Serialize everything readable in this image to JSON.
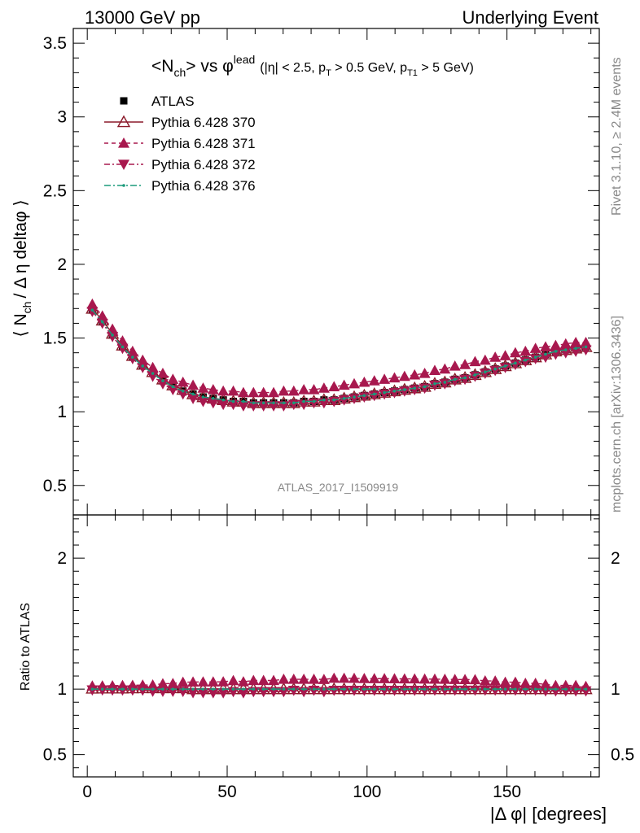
{
  "header": {
    "left": "13000 GeV pp",
    "right": "Underlying Event"
  },
  "side_labels": {
    "rivet": "Rivet 3.1.10, ≥ 2.4M events",
    "mcplots": "mcplots.cern.ch [arXiv:1306.3436]"
  },
  "analysis_id": "ATLAS_2017_I1509919",
  "colors": {
    "atlas": "#000000",
    "p370": "#8b1a2a",
    "p371": "#a8184e",
    "p372": "#a8184e",
    "p376": "#1a9a7a"
  },
  "chart_data": [
    {
      "type": "scatter",
      "title": {
        "main": "<N",
        "sub1": "ch",
        "mid": "> vs φ",
        "sup": "lead",
        "cuts_a": "(|η| < 2.5, p",
        "cuts_sub_a": "T",
        "cuts_b": " > 0.5 GeV, p",
        "cuts_sub_b": "T1",
        "cuts_c": " > 5 GeV)"
      },
      "ylabel": {
        "a": "⟨ N",
        "sub": "ch",
        "b": "/ Δ η deltaφ ⟩"
      },
      "xlabel": "",
      "xlim": [
        -5,
        183
      ],
      "ylim": [
        0.3,
        3.6
      ],
      "yticks": [
        0.5,
        1,
        1.5,
        2,
        2.5,
        3,
        3.5
      ],
      "ytick_labels": [
        "0.5",
        "1",
        "1.5",
        "2",
        "2.5",
        "3",
        "3.5"
      ],
      "legend": {
        "placement": "top-left",
        "entries": [
          "ATLAS",
          "Pythia 6.428 370",
          "Pythia 6.428 371",
          "Pythia 6.428 372",
          "Pythia 6.428 376"
        ]
      },
      "x": [
        1.8,
        5.4,
        9.0,
        12.6,
        16.2,
        19.8,
        23.4,
        27.0,
        30.6,
        34.2,
        37.8,
        41.4,
        45.0,
        48.6,
        52.2,
        55.8,
        59.4,
        63.0,
        66.6,
        70.2,
        73.8,
        77.4,
        81.0,
        84.6,
        88.2,
        91.8,
        95.4,
        99.0,
        102.6,
        106.2,
        109.8,
        113.4,
        117.0,
        120.6,
        124.2,
        127.8,
        131.4,
        135.0,
        138.6,
        142.2,
        145.8,
        149.4,
        153.0,
        156.6,
        160.2,
        163.8,
        167.4,
        171.0,
        174.6,
        178.2
      ],
      "series": [
        {
          "name": "ATLAS",
          "marker": "square",
          "values": [
            1.69,
            1.61,
            1.52,
            1.44,
            1.37,
            1.31,
            1.26,
            1.21,
            1.17,
            1.14,
            1.12,
            1.1,
            1.09,
            1.08,
            1.07,
            1.07,
            1.06,
            1.06,
            1.06,
            1.06,
            1.06,
            1.07,
            1.07,
            1.08,
            1.08,
            1.09,
            1.1,
            1.11,
            1.12,
            1.13,
            1.14,
            1.15,
            1.16,
            1.17,
            1.19,
            1.2,
            1.22,
            1.23,
            1.25,
            1.27,
            1.29,
            1.31,
            1.33,
            1.35,
            1.37,
            1.39,
            1.41,
            1.42,
            1.43,
            1.44
          ]
        },
        {
          "name": "Pythia 6.428 370",
          "marker": "triangle-open",
          "values": [
            1.7,
            1.62,
            1.53,
            1.45,
            1.38,
            1.32,
            1.27,
            1.22,
            1.18,
            1.15,
            1.12,
            1.1,
            1.09,
            1.08,
            1.07,
            1.07,
            1.06,
            1.06,
            1.06,
            1.06,
            1.06,
            1.07,
            1.07,
            1.08,
            1.08,
            1.09,
            1.1,
            1.11,
            1.12,
            1.13,
            1.14,
            1.15,
            1.16,
            1.17,
            1.19,
            1.2,
            1.22,
            1.23,
            1.25,
            1.27,
            1.29,
            1.31,
            1.33,
            1.35,
            1.37,
            1.39,
            1.41,
            1.42,
            1.43,
            1.44
          ]
        },
        {
          "name": "Pythia 6.428 371",
          "marker": "triangle-up",
          "values": [
            1.73,
            1.65,
            1.56,
            1.48,
            1.41,
            1.35,
            1.3,
            1.26,
            1.22,
            1.2,
            1.18,
            1.16,
            1.15,
            1.14,
            1.14,
            1.13,
            1.13,
            1.13,
            1.13,
            1.14,
            1.14,
            1.15,
            1.15,
            1.16,
            1.17,
            1.18,
            1.19,
            1.2,
            1.21,
            1.22,
            1.23,
            1.24,
            1.25,
            1.26,
            1.28,
            1.29,
            1.31,
            1.32,
            1.34,
            1.35,
            1.37,
            1.38,
            1.4,
            1.41,
            1.43,
            1.44,
            1.45,
            1.46,
            1.47,
            1.47
          ]
        },
        {
          "name": "Pythia 6.428 372",
          "marker": "triangle-down",
          "values": [
            1.68,
            1.6,
            1.51,
            1.43,
            1.36,
            1.3,
            1.24,
            1.19,
            1.15,
            1.12,
            1.09,
            1.07,
            1.06,
            1.05,
            1.05,
            1.04,
            1.04,
            1.04,
            1.04,
            1.04,
            1.05,
            1.05,
            1.06,
            1.06,
            1.07,
            1.08,
            1.09,
            1.1,
            1.11,
            1.12,
            1.13,
            1.14,
            1.15,
            1.16,
            1.18,
            1.19,
            1.21,
            1.22,
            1.24,
            1.26,
            1.28,
            1.3,
            1.32,
            1.34,
            1.36,
            1.37,
            1.39,
            1.4,
            1.41,
            1.42
          ]
        },
        {
          "name": "Pythia 6.428 376",
          "marker": "dot",
          "values": [
            1.69,
            1.61,
            1.52,
            1.44,
            1.37,
            1.31,
            1.26,
            1.21,
            1.17,
            1.14,
            1.12,
            1.1,
            1.09,
            1.08,
            1.07,
            1.07,
            1.06,
            1.06,
            1.06,
            1.06,
            1.06,
            1.07,
            1.07,
            1.08,
            1.08,
            1.09,
            1.1,
            1.11,
            1.12,
            1.13,
            1.14,
            1.15,
            1.16,
            1.17,
            1.19,
            1.2,
            1.22,
            1.23,
            1.25,
            1.27,
            1.29,
            1.31,
            1.33,
            1.35,
            1.37,
            1.39,
            1.41,
            1.42,
            1.43,
            1.44
          ]
        }
      ]
    },
    {
      "type": "scatter",
      "title": "",
      "ylabel": "Ratio to ATLAS",
      "xlabel": "|Δ φ| [degrees]",
      "xlim": [
        -5,
        183
      ],
      "ylim": [
        0.33,
        2.33
      ],
      "yticks": [
        0.5,
        1,
        2
      ],
      "ytick_labels": [
        "0.5",
        "1",
        "2"
      ],
      "xticks": [
        0,
        50,
        100,
        150
      ],
      "xtick_labels": [
        "0",
        "50",
        "100",
        "150"
      ],
      "series": [
        {
          "name": "Pythia 6.428 370",
          "marker": "triangle-open",
          "values": [
            1.005,
            1.006,
            1.006,
            1.006,
            1.007,
            1.008,
            1.008,
            1.008,
            1.008,
            1.008,
            1.0,
            1.0,
            1.0,
            1.0,
            1.0,
            1.0,
            1.0,
            1.0,
            1.0,
            1.0,
            1.0,
            1.0,
            1.0,
            1.0,
            1.0,
            1.0,
            1.0,
            1.0,
            1.0,
            1.0,
            1.0,
            1.0,
            1.0,
            1.0,
            1.0,
            1.0,
            1.0,
            1.0,
            1.0,
            1.0,
            1.0,
            1.0,
            1.0,
            1.0,
            1.0,
            1.0,
            1.0,
            1.0,
            1.0,
            1.0
          ]
        },
        {
          "name": "Pythia 6.428 371",
          "marker": "triangle-up",
          "values": [
            1.024,
            1.025,
            1.026,
            1.028,
            1.029,
            1.031,
            1.032,
            1.041,
            1.043,
            1.053,
            1.054,
            1.055,
            1.055,
            1.056,
            1.065,
            1.056,
            1.066,
            1.066,
            1.066,
            1.075,
            1.075,
            1.075,
            1.075,
            1.074,
            1.083,
            1.083,
            1.082,
            1.081,
            1.08,
            1.08,
            1.079,
            1.078,
            1.078,
            1.077,
            1.076,
            1.075,
            1.074,
            1.073,
            1.072,
            1.063,
            1.062,
            1.053,
            1.053,
            1.044,
            1.044,
            1.036,
            1.028,
            1.028,
            1.028,
            1.021
          ]
        },
        {
          "name": "Pythia 6.428 372",
          "marker": "triangle-down",
          "values": [
            0.994,
            0.994,
            0.993,
            0.993,
            0.993,
            0.992,
            0.984,
            0.983,
            0.983,
            0.982,
            0.973,
            0.973,
            0.972,
            0.972,
            0.981,
            0.972,
            0.981,
            0.981,
            0.981,
            0.981,
            0.991,
            0.981,
            0.991,
            0.981,
            0.991,
            0.991,
            0.991,
            0.991,
            0.991,
            0.991,
            0.991,
            0.991,
            0.991,
            0.991,
            0.992,
            0.992,
            0.992,
            0.992,
            0.992,
            0.992,
            0.992,
            0.992,
            0.992,
            0.993,
            0.993,
            0.986,
            0.986,
            0.986,
            0.986,
            0.986
          ]
        },
        {
          "name": "Pythia 6.428 376",
          "marker": "dot",
          "values": [
            1.0,
            1.0,
            1.0,
            1.0,
            1.0,
            1.0,
            1.0,
            1.0,
            1.0,
            1.0,
            1.0,
            1.0,
            1.0,
            1.0,
            1.0,
            1.0,
            1.0,
            1.0,
            1.0,
            1.0,
            1.0,
            1.0,
            1.0,
            1.0,
            1.0,
            1.0,
            1.0,
            1.0,
            1.0,
            1.0,
            1.0,
            1.0,
            1.0,
            1.0,
            1.0,
            1.0,
            1.0,
            1.0,
            1.0,
            1.0,
            1.0,
            1.0,
            1.0,
            1.0,
            1.0,
            1.0,
            1.0,
            1.0,
            1.0,
            1.0
          ]
        }
      ]
    }
  ]
}
